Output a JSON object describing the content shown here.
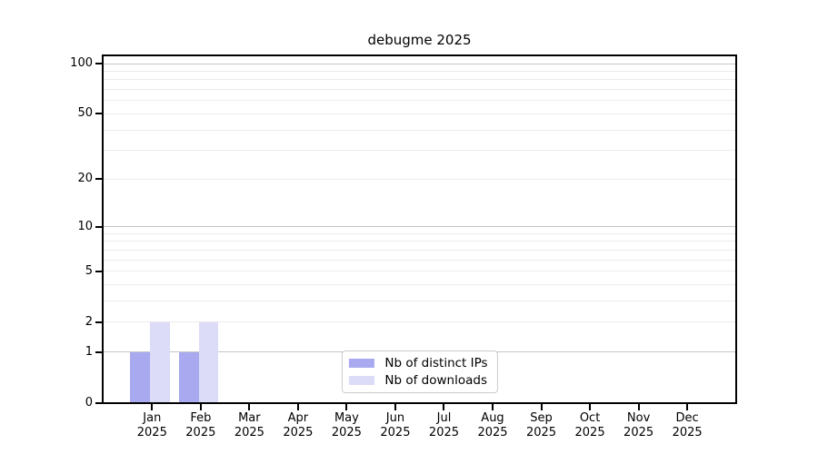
{
  "chart_data": {
    "type": "bar",
    "title": "debugme 2025",
    "categories": [
      "Jan",
      "Feb",
      "Mar",
      "Apr",
      "May",
      "Jun",
      "Jul",
      "Aug",
      "Sep",
      "Oct",
      "Nov",
      "Dec"
    ],
    "category_year": "2025",
    "series": [
      {
        "name": "Nb of distinct IPs",
        "color": "#a9a9f0",
        "values": [
          1,
          1,
          0,
          0,
          0,
          0,
          0,
          0,
          0,
          0,
          0,
          0
        ]
      },
      {
        "name": "Nb of downloads",
        "color": "#dcdcf8",
        "values": [
          2,
          2,
          0,
          0,
          0,
          0,
          0,
          0,
          0,
          0,
          0,
          0
        ]
      }
    ],
    "bar_grouping": "grouped",
    "y_scale": "log10(x+1)",
    "ylim": [
      0,
      100
    ],
    "y_ticks": [
      0,
      1,
      2,
      5,
      10,
      20,
      50,
      100
    ],
    "y_minor_gridlines": [
      3,
      4,
      6,
      7,
      8,
      9,
      30,
      40,
      60,
      70,
      80,
      90
    ],
    "y_emphasized_gridlines": [
      1,
      10,
      100
    ],
    "grid": "horizontal",
    "legend_position": "inside-bottom-center",
    "xlabel": "",
    "ylabel": ""
  },
  "colors": {
    "background": "#ffffff",
    "axis": "#000000",
    "grid_emphasized": "#c6c6c6",
    "grid_regular": "#ebebeb",
    "legend_border": "#cccccc",
    "text": "#000000"
  }
}
